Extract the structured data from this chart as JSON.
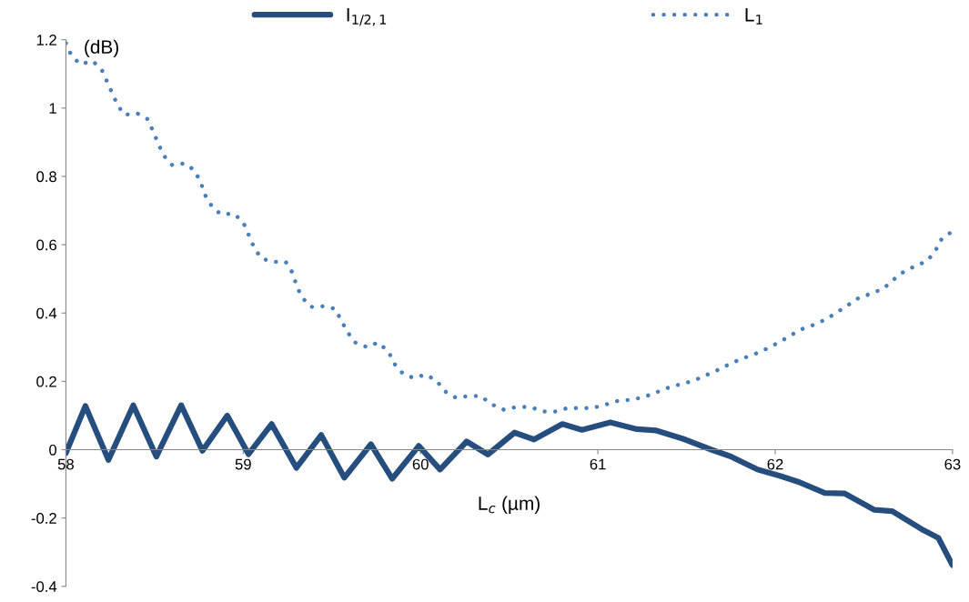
{
  "chart_data": {
    "type": "line",
    "xlabel": "L$_{c}$ (µm)",
    "ylabel": "(dB)",
    "xlim": [
      58,
      63
    ],
    "xticks": [
      58,
      59,
      60,
      61,
      62,
      63
    ],
    "ylim": [
      -0.4,
      1.2
    ],
    "yticks": [
      -0.4,
      -0.2,
      0,
      0.2,
      0.4,
      0.6,
      0.8,
      1,
      1.2
    ],
    "grid": false,
    "legend": "top",
    "marker": "none",
    "series": [
      {
        "name": "I$_{1/2,1}$",
        "color": "#254e7f",
        "line_style": "solid",
        "x": [
          58.0,
          58.11,
          58.24,
          58.38,
          58.51,
          58.65,
          58.77,
          58.91,
          59.03,
          59.16,
          59.3,
          59.44,
          59.57,
          59.72,
          59.84,
          59.99,
          60.11,
          60.26,
          60.38,
          60.53,
          60.64,
          60.8,
          60.91,
          61.07,
          61.22,
          61.33,
          61.48,
          61.64,
          61.75,
          61.9,
          62.03,
          62.14,
          62.28,
          62.39,
          62.56,
          62.66,
          62.83,
          62.92,
          63.0
        ],
        "values": [
          -0.01,
          0.128,
          -0.03,
          0.13,
          -0.02,
          0.13,
          -0.003,
          0.1,
          -0.013,
          0.075,
          -0.053,
          0.043,
          -0.082,
          0.016,
          -0.085,
          0.011,
          -0.058,
          0.024,
          -0.014,
          0.05,
          0.03,
          0.075,
          0.058,
          0.08,
          0.06,
          0.056,
          0.032,
          0.0,
          -0.02,
          -0.058,
          -0.077,
          -0.096,
          -0.127,
          -0.128,
          -0.176,
          -0.18,
          -0.234,
          -0.258,
          -0.338
        ]
      },
      {
        "name": "L$_{1}$",
        "color": "#4a7ebb",
        "line_style": "dotted",
        "x": [
          58.0,
          58.03,
          58.08,
          58.15,
          58.2,
          58.23,
          58.26,
          58.29,
          58.33,
          58.4,
          58.46,
          58.49,
          58.52,
          58.55,
          58.6,
          58.67,
          58.72,
          58.76,
          58.78,
          58.82,
          58.87,
          58.95,
          59.0,
          59.03,
          59.06,
          59.1,
          59.16,
          59.24,
          59.28,
          59.3,
          59.33,
          59.38,
          59.46,
          59.52,
          59.55,
          59.59,
          59.63,
          59.7,
          59.76,
          59.82,
          59.85,
          59.9,
          59.96,
          60.03,
          60.09,
          60.14,
          60.2,
          60.27,
          60.34,
          60.4,
          60.47,
          60.54,
          60.62,
          60.69,
          60.76,
          60.83,
          60.9,
          60.97,
          61.05,
          61.12,
          61.19,
          61.26,
          61.33,
          61.41,
          61.47,
          61.54,
          61.61,
          61.68,
          61.74,
          61.81,
          61.88,
          61.95,
          62.02,
          62.08,
          62.14,
          62.21,
          62.28,
          62.34,
          62.41,
          62.47,
          62.53,
          62.61,
          62.66,
          62.72,
          62.78,
          62.85,
          62.9,
          62.93,
          62.99
        ],
        "values": [
          1.19,
          1.155,
          1.128,
          1.138,
          1.114,
          1.08,
          1.045,
          1.01,
          0.98,
          0.985,
          0.968,
          0.934,
          0.897,
          0.862,
          0.833,
          0.838,
          0.82,
          0.785,
          0.75,
          0.715,
          0.69,
          0.69,
          0.665,
          0.63,
          0.593,
          0.561,
          0.55,
          0.55,
          0.516,
          0.481,
          0.447,
          0.418,
          0.42,
          0.412,
          0.38,
          0.343,
          0.314,
          0.3,
          0.314,
          0.287,
          0.253,
          0.223,
          0.21,
          0.22,
          0.202,
          0.17,
          0.152,
          0.157,
          0.157,
          0.133,
          0.117,
          0.125,
          0.125,
          0.112,
          0.112,
          0.122,
          0.122,
          0.122,
          0.133,
          0.144,
          0.146,
          0.154,
          0.168,
          0.184,
          0.192,
          0.202,
          0.218,
          0.234,
          0.25,
          0.266,
          0.279,
          0.295,
          0.314,
          0.332,
          0.351,
          0.364,
          0.38,
          0.399,
          0.423,
          0.444,
          0.455,
          0.471,
          0.495,
          0.519,
          0.535,
          0.551,
          0.577,
          0.612,
          0.636
        ]
      }
    ]
  }
}
